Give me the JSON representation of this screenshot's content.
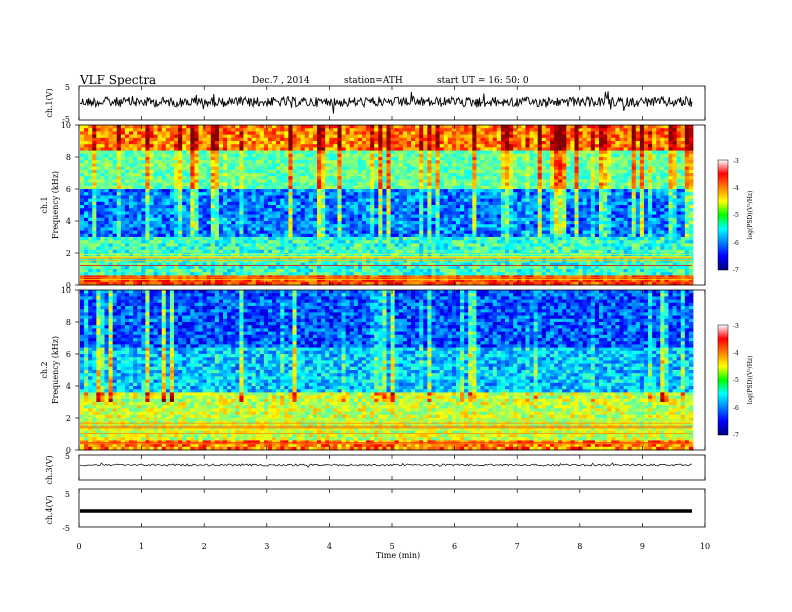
{
  "header": {
    "title": "VLF  Spectra",
    "date": "Dec.7  , 2014",
    "station": "station=ATH",
    "start": "start  UT  =   16: 50: 0"
  },
  "chart_data": [
    {
      "type": "line",
      "panel": "ch1",
      "ylabel": "ch.1(V)",
      "ylim": [
        -5,
        5
      ],
      "yticks": [
        "5",
        "-5"
      ],
      "xlim": [
        0,
        10
      ],
      "description_level": "waveform fluctuating around 0 V"
    },
    {
      "type": "heatmap",
      "panel": "spec1",
      "ylabel": [
        "ch.1",
        "Frequency  (kHz)"
      ],
      "ylim": [
        0,
        10
      ],
      "yticks": [
        "0",
        "2",
        "4",
        "6",
        "8",
        "10"
      ],
      "xlim": [
        0,
        10
      ],
      "colorbar": {
        "label": "log(PSD)(V²/Hz)",
        "range": [
          -7,
          -3
        ],
        "ticks": [
          "-3",
          "-4",
          "-5",
          "-6",
          "-7"
        ]
      }
    },
    {
      "type": "heatmap",
      "panel": "spec2",
      "ylabel": [
        "ch.2",
        "Frequency  (kHz)"
      ],
      "ylim": [
        0,
        10
      ],
      "yticks": [
        "0",
        "2",
        "4",
        "6",
        "8",
        "10"
      ],
      "xlim": [
        0,
        10
      ],
      "colorbar": {
        "label": "log(PSD)(V²/Hz)",
        "range": [
          -7,
          -3
        ],
        "ticks": [
          "-3",
          "-4",
          "-5",
          "-6",
          "-7"
        ]
      }
    },
    {
      "type": "line",
      "panel": "ch3",
      "ylabel": "ch.3(V)",
      "ylim": [
        -5,
        5
      ],
      "yticks": [
        "5"
      ],
      "xlim": [
        0,
        10
      ]
    },
    {
      "type": "line",
      "panel": "ch4",
      "ylabel": "ch.4(V)",
      "ylim": [
        -5,
        5
      ],
      "yticks": [
        "5",
        "-5"
      ],
      "xlim": [
        0,
        10
      ]
    }
  ],
  "xaxis": {
    "label": "Time  (min)",
    "ticks": [
      "0",
      "1",
      "2",
      "3",
      "4",
      "5",
      "6",
      "7",
      "8",
      "9",
      "10"
    ]
  }
}
